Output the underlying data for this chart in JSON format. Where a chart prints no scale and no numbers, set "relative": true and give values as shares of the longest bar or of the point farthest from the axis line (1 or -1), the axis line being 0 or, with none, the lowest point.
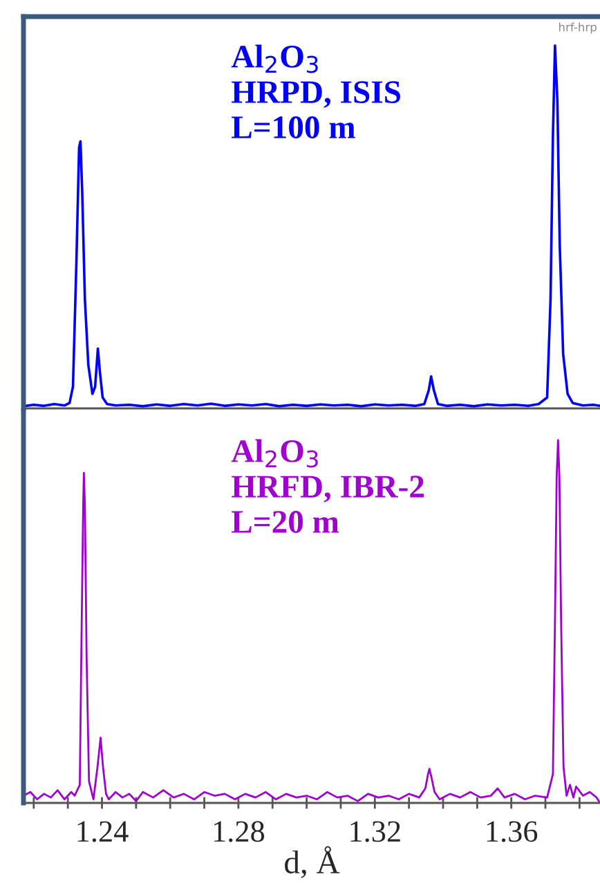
{
  "chart_data": [
    {
      "type": "line",
      "relative": true,
      "xlim": [
        1.217,
        1.386
      ],
      "annotations": [
        "Al$_{2}$O$_{3}$",
        "HRPD, ISIS",
        "L=100 m",
        "hrf-hrp"
      ],
      "series": [
        {
          "color": "#0000ff",
          "x": [
            1.217,
            1.22,
            1.223,
            1.226,
            1.229,
            1.2305,
            1.2315,
            1.2325,
            1.2333,
            1.2337,
            1.2342,
            1.235,
            1.236,
            1.2372,
            1.238,
            1.2388,
            1.2394,
            1.2402,
            1.2415,
            1.244,
            1.248,
            1.252,
            1.256,
            1.26,
            1.264,
            1.268,
            1.272,
            1.276,
            1.28,
            1.284,
            1.288,
            1.292,
            1.296,
            1.3,
            1.304,
            1.308,
            1.312,
            1.316,
            1.32,
            1.324,
            1.328,
            1.332,
            1.3345,
            1.3358,
            1.3365,
            1.3373,
            1.3385,
            1.341,
            1.345,
            1.349,
            1.353,
            1.357,
            1.361,
            1.365,
            1.368,
            1.3705,
            1.3715,
            1.3722,
            1.3728,
            1.3735,
            1.3742,
            1.3752,
            1.3765,
            1.378,
            1.381,
            1.384,
            1.386
          ],
          "values": [
            0.006,
            0.01,
            0.007,
            0.012,
            0.008,
            0.015,
            0.06,
            0.4,
            0.72,
            0.736,
            0.6,
            0.3,
            0.12,
            0.04,
            0.06,
            0.165,
            0.1,
            0.03,
            0.012,
            0.008,
            0.01,
            0.006,
            0.011,
            0.007,
            0.012,
            0.008,
            0.013,
            0.007,
            0.011,
            0.008,
            0.012,
            0.006,
            0.01,
            0.007,
            0.011,
            0.008,
            0.01,
            0.006,
            0.011,
            0.008,
            0.01,
            0.007,
            0.012,
            0.05,
            0.088,
            0.05,
            0.012,
            0.007,
            0.01,
            0.006,
            0.011,
            0.008,
            0.01,
            0.007,
            0.012,
            0.03,
            0.3,
            0.75,
            1.0,
            0.85,
            0.45,
            0.15,
            0.04,
            0.015,
            0.008,
            0.01,
            0.007
          ]
        }
      ]
    },
    {
      "type": "line",
      "relative": true,
      "xlim": [
        1.217,
        1.386
      ],
      "xlabel": "d, Å",
      "xticks": [
        {
          "value": 1.22,
          "label": null
        },
        {
          "value": 1.23,
          "label": null
        },
        {
          "value": 1.24,
          "label": "1.24"
        },
        {
          "value": 1.25,
          "label": null
        },
        {
          "value": 1.26,
          "label": null
        },
        {
          "value": 1.27,
          "label": null
        },
        {
          "value": 1.28,
          "label": "1.28"
        },
        {
          "value": 1.29,
          "label": null
        },
        {
          "value": 1.3,
          "label": null
        },
        {
          "value": 1.31,
          "label": null
        },
        {
          "value": 1.32,
          "label": "1.32"
        },
        {
          "value": 1.33,
          "label": null
        },
        {
          "value": 1.34,
          "label": null
        },
        {
          "value": 1.35,
          "label": null
        },
        {
          "value": 1.36,
          "label": "1.36"
        },
        {
          "value": 1.37,
          "label": null
        },
        {
          "value": 1.38,
          "label": null
        }
      ],
      "annotations": [
        "Al$_{2}$O$_{3}$",
        "HRFD, IBR-2",
        "L=20 m"
      ],
      "series": [
        {
          "color": "#a000d0",
          "x": [
            1.217,
            1.219,
            1.221,
            1.223,
            1.225,
            1.227,
            1.229,
            1.231,
            1.232,
            1.2335,
            1.234,
            1.2345,
            1.2347,
            1.235,
            1.2355,
            1.2362,
            1.2375,
            1.2387,
            1.2396,
            1.2403,
            1.2412,
            1.242,
            1.244,
            1.246,
            1.248,
            1.25,
            1.252,
            1.255,
            1.258,
            1.261,
            1.264,
            1.267,
            1.27,
            1.273,
            1.276,
            1.279,
            1.282,
            1.285,
            1.288,
            1.291,
            1.294,
            1.297,
            1.3,
            1.303,
            1.306,
            1.309,
            1.312,
            1.315,
            1.318,
            1.321,
            1.324,
            1.327,
            1.33,
            1.333,
            1.3348,
            1.3356,
            1.336,
            1.3366,
            1.3375,
            1.339,
            1.342,
            1.345,
            1.348,
            1.351,
            1.354,
            1.356,
            1.358,
            1.361,
            1.364,
            1.367,
            1.3705,
            1.3722,
            1.3728,
            1.3733,
            1.3737,
            1.3741,
            1.3746,
            1.3753,
            1.3762,
            1.3772,
            1.3782,
            1.379,
            1.381,
            1.383,
            1.385,
            1.386
          ],
          "values": [
            0.02,
            0.03,
            0.01,
            0.025,
            0.015,
            0.035,
            0.01,
            0.03,
            0.02,
            0.05,
            0.45,
            0.82,
            0.91,
            0.82,
            0.4,
            0.06,
            0.01,
            0.1,
            0.18,
            0.1,
            0.025,
            0.01,
            0.03,
            0.015,
            0.025,
            0.005,
            0.03,
            0.015,
            0.035,
            0.015,
            0.025,
            0.01,
            0.03,
            0.02,
            0.025,
            0.01,
            0.025,
            0.015,
            0.03,
            0.01,
            0.025,
            0.015,
            0.02,
            0.01,
            0.03,
            0.015,
            0.02,
            0.005,
            0.025,
            0.015,
            0.02,
            0.01,
            0.025,
            0.015,
            0.04,
            0.08,
            0.094,
            0.07,
            0.03,
            0.01,
            0.025,
            0.015,
            0.03,
            0.015,
            0.02,
            0.04,
            0.015,
            0.025,
            0.01,
            0.02,
            0.015,
            0.08,
            0.5,
            0.9,
            1.0,
            0.9,
            0.5,
            0.1,
            0.02,
            0.05,
            0.015,
            0.045,
            0.02,
            0.03,
            0.015,
            0.0
          ]
        }
      ]
    }
  ]
}
